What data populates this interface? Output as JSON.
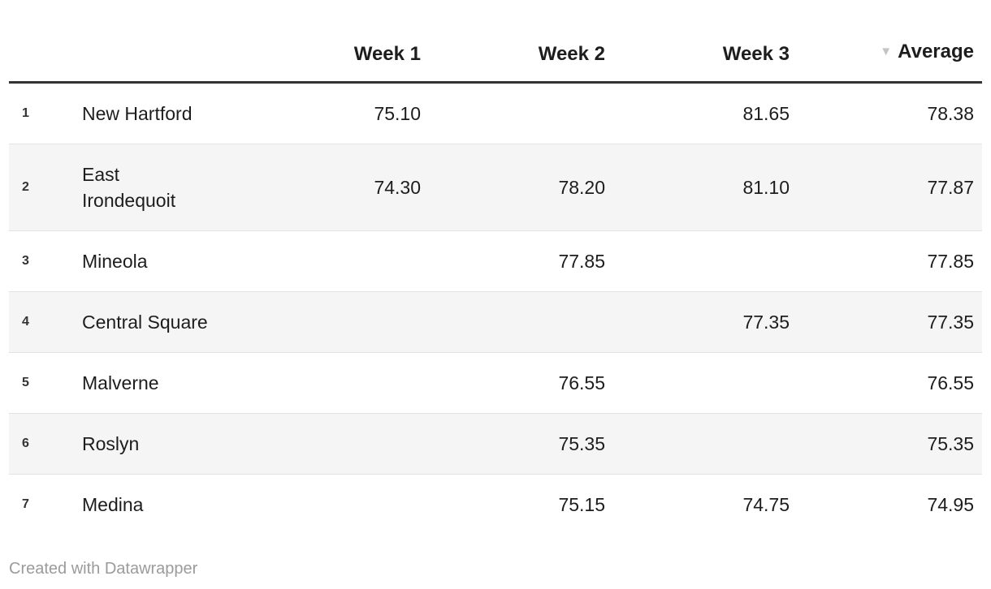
{
  "header": {
    "sort_indicator": "▼",
    "columns": [
      {
        "key": "rank",
        "label": ""
      },
      {
        "key": "name",
        "label": ""
      },
      {
        "key": "week1",
        "label": "Week 1"
      },
      {
        "key": "week2",
        "label": "Week 2"
      },
      {
        "key": "week3",
        "label": "Week 3"
      },
      {
        "key": "average",
        "label": "Average",
        "sorted": "desc"
      }
    ]
  },
  "rows": [
    {
      "rank": "1",
      "name": "New Hartford",
      "week1": "75.10",
      "week2": "",
      "week3": "81.65",
      "average": "78.38"
    },
    {
      "rank": "2",
      "name": "East\nIrondequoit",
      "week1": "74.30",
      "week2": "78.20",
      "week3": "81.10",
      "average": "77.87"
    },
    {
      "rank": "3",
      "name": "Mineola",
      "week1": "",
      "week2": "77.85",
      "week3": "",
      "average": "77.85"
    },
    {
      "rank": "4",
      "name": "Central Square",
      "week1": "",
      "week2": "",
      "week3": "77.35",
      "average": "77.35"
    },
    {
      "rank": "5",
      "name": "Malverne",
      "week1": "",
      "week2": "76.55",
      "week3": "",
      "average": "76.55"
    },
    {
      "rank": "6",
      "name": "Roslyn",
      "week1": "",
      "week2": "75.35",
      "week3": "",
      "average": "75.35"
    },
    {
      "rank": "7",
      "name": "Medina",
      "week1": "",
      "week2": "75.15",
      "week3": "74.75",
      "average": "74.95"
    }
  ],
  "footer": {
    "credit": "Created with Datawrapper"
  },
  "colors": {
    "header_rule": "#333333",
    "row_divider": "#e3e3e3",
    "stripe": "#f5f5f5",
    "text": "#1d1d1d",
    "rank_text": "#333333",
    "sort_arrow": "#c4c4c4",
    "footer_text": "#9b9b9b"
  }
}
